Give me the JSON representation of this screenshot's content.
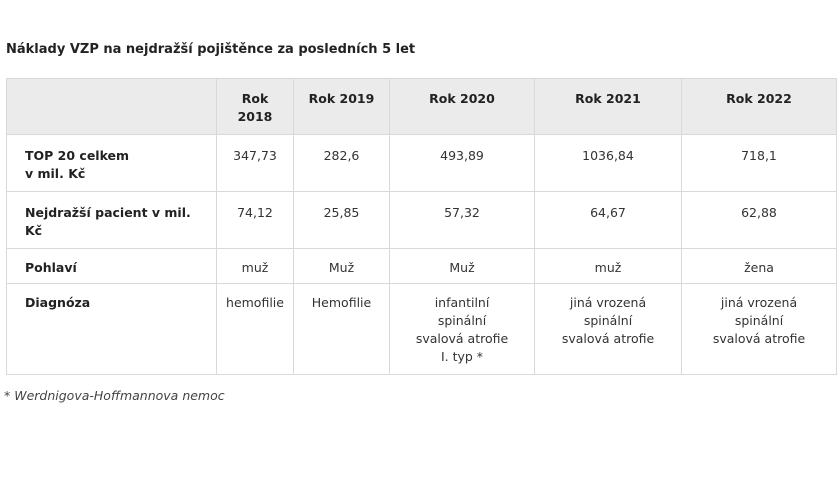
{
  "title": "Náklady VZP na nejdražší pojištěnce za posledních 5 let",
  "table": {
    "corner": "",
    "columns": [
      "Rok\n2018",
      "Rok 2019",
      "Rok 2020",
      "Rok 2021",
      "Rok 2022"
    ],
    "rows": [
      {
        "label": "TOP 20 celkem\nv mil. Kč",
        "values": [
          "347,73",
          "282,6",
          "493,89",
          "1036,84",
          "718,1"
        ]
      },
      {
        "label": "Nejdražší pacient v mil.\nKč",
        "values": [
          "74,12",
          "25,85",
          "57,32",
          "64,67",
          "62,88"
        ]
      },
      {
        "label": "Pohlaví",
        "values": [
          "muž",
          "Muž",
          "Muž",
          "muž",
          "žena"
        ]
      },
      {
        "label": "Diagnóza",
        "values": [
          "hemofilie",
          "Hemofilie",
          "infantilní\nspinální\nsvalová atrofie\nI. typ *",
          "jiná vrozená\nspinální\nsvalová atrofie",
          "jiná vrozená\nspinální\nsvalová atrofie"
        ]
      }
    ]
  },
  "footnote": "* Werdnigova-Hoffmannova nemoc"
}
